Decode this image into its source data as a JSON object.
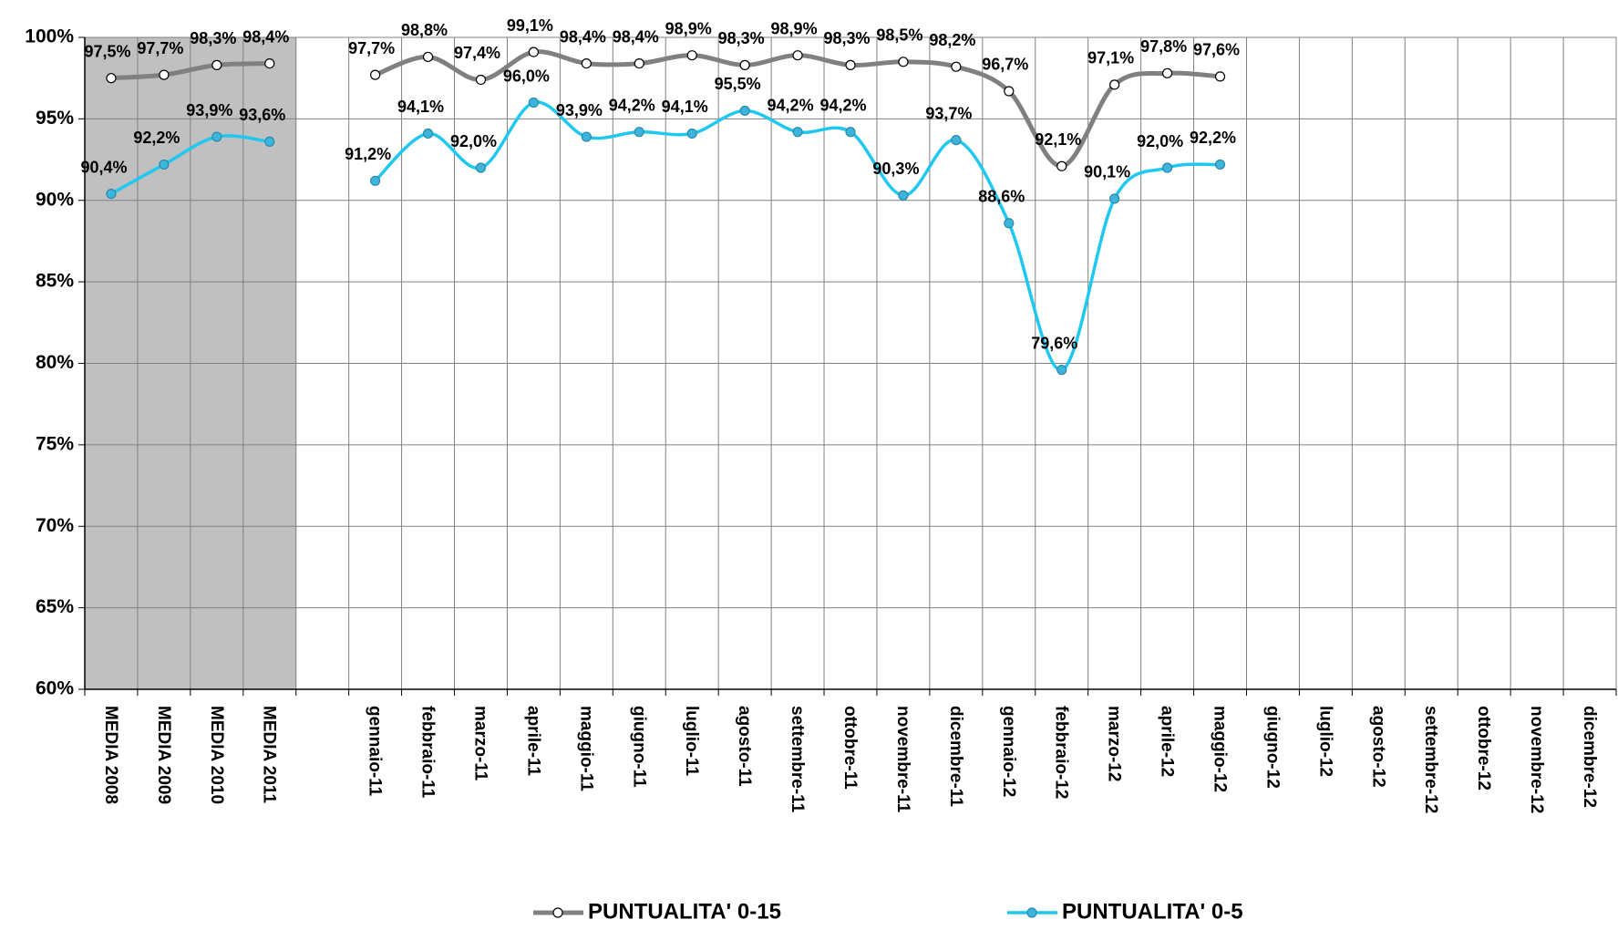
{
  "chart_data": {
    "type": "line",
    "categories": [
      "MEDIA 2008",
      "MEDIA 2009",
      "MEDIA 2010",
      "MEDIA 2011",
      null,
      "gennaio-11",
      "febbraio-11",
      "marzo-11",
      "aprile-11",
      "maggio-11",
      "giugno-11",
      "luglio-11",
      "agosto-11",
      "settembre-11",
      "ottobre-11",
      "novembre-11",
      "dicembre-11",
      "gennaio-12",
      "febbraio-12",
      "marzo-12",
      "aprile-12",
      "maggio-12",
      "giugno-12",
      "luglio-12",
      "agosto-12",
      "settembre-12",
      "ottobre-12",
      "novembre-12",
      "dicembre-12"
    ],
    "series": [
      {
        "name": "PUNTUALITA' 0-15",
        "color": "#808080",
        "marker_fill": "#ffffff",
        "values": [
          97.5,
          97.7,
          98.3,
          98.4,
          null,
          97.7,
          98.8,
          97.4,
          99.1,
          98.4,
          98.4,
          98.9,
          98.3,
          98.9,
          98.3,
          98.5,
          98.2,
          96.7,
          92.1,
          97.1,
          97.8,
          97.6,
          null,
          null,
          null,
          null,
          null,
          null,
          null
        ],
        "value_labels": [
          "97,5%",
          "97,7%",
          "98,3%",
          "98,4%",
          null,
          "97,7%",
          "98,8%",
          "97,4%",
          "99,1%",
          "98,4%",
          "98,4%",
          "98,9%",
          "98,3%",
          "98,9%",
          "98,3%",
          "98,5%",
          "98,2%",
          "96,7%",
          "92,1%",
          "97,1%",
          "97,8%",
          "97,6%",
          null,
          null,
          null,
          null,
          null,
          null,
          null
        ]
      },
      {
        "name": "PUNTUALITA' 0-5",
        "color": "#1ec8f0",
        "marker_fill": "#3cb4dc",
        "values": [
          90.4,
          92.2,
          93.9,
          93.6,
          null,
          91.2,
          94.1,
          92.0,
          96.0,
          93.9,
          94.2,
          94.1,
          95.5,
          94.2,
          94.2,
          90.3,
          93.7,
          88.6,
          79.6,
          90.1,
          92.0,
          92.2,
          null,
          null,
          null,
          null,
          null,
          null,
          null
        ],
        "value_labels": [
          "90,4%",
          "92,2%",
          "93,9%",
          "93,6%",
          null,
          "91,2%",
          "94,1%",
          "92,0%",
          "96,0%",
          "93,9%",
          "94,2%",
          "94,1%",
          "95,5%",
          "94,2%",
          "94,2%",
          "90,3%",
          "93,7%",
          "88,6%",
          "79,6%",
          "90,1%",
          "92,0%",
          "92,2%",
          null,
          null,
          null,
          null,
          null,
          null,
          null
        ]
      }
    ],
    "ylim": [
      60,
      100
    ],
    "yticks": [
      {
        "value": 60,
        "label": "60%"
      },
      {
        "value": 65,
        "label": "65%"
      },
      {
        "value": 70,
        "label": "70%"
      },
      {
        "value": 75,
        "label": "75%"
      },
      {
        "value": 80,
        "label": "80%"
      },
      {
        "value": 85,
        "label": "85%"
      },
      {
        "value": 90,
        "label": "90%"
      },
      {
        "value": 95,
        "label": "95%"
      },
      {
        "value": 100,
        "label": "100%"
      }
    ],
    "grid": true,
    "legend": "bottom"
  }
}
